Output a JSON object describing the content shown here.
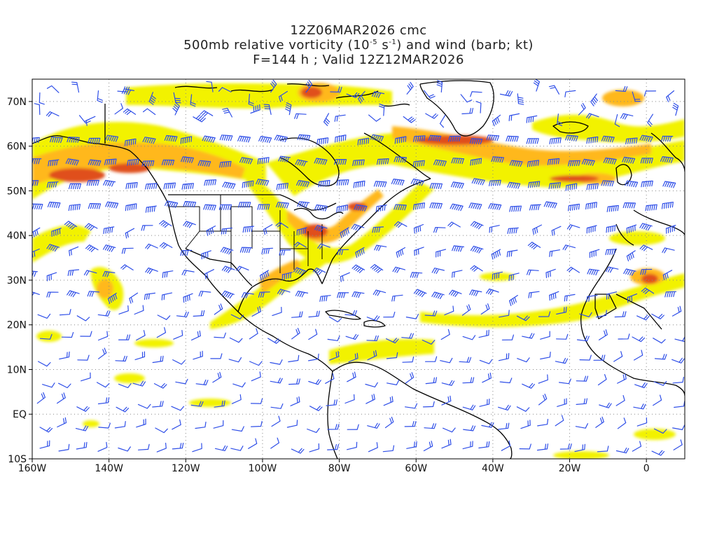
{
  "title": {
    "line1": "12Z06MAR2026 cmc",
    "line2_pre": "500mb relative vorticity (10",
    "line2_exp1": "-5",
    "line2_mid": " s",
    "line2_exp2": "-1",
    "line2_post": ") and wind (barb; kt)",
    "line3": "F=144 h ; Valid 12Z12MAR2026"
  },
  "axes": {
    "lat_labels": [
      "70N",
      "60N",
      "50N",
      "40N",
      "30N",
      "20N",
      "10N",
      "EQ",
      "10S"
    ],
    "lat_values": [
      70,
      60,
      50,
      40,
      30,
      20,
      10,
      0,
      -10
    ],
    "lon_labels": [
      "160W",
      "140W",
      "120W",
      "100W",
      "80W",
      "60W",
      "40W",
      "20W",
      "0"
    ],
    "lon_values": [
      -160,
      -140,
      -120,
      -100,
      -80,
      -60,
      -40,
      -20,
      0
    ],
    "lon_range": [
      -160,
      10
    ],
    "lat_range": [
      -10,
      75
    ],
    "grid": "dotted"
  },
  "colors": {
    "vort_low": "#f2f200",
    "vort_mid": "#ffcc00",
    "vort_high": "#ff8a1e",
    "vort_max": "#dc3a14",
    "barb": "#2f4fe8",
    "coast": "#000000",
    "grid": "#888888"
  }
}
